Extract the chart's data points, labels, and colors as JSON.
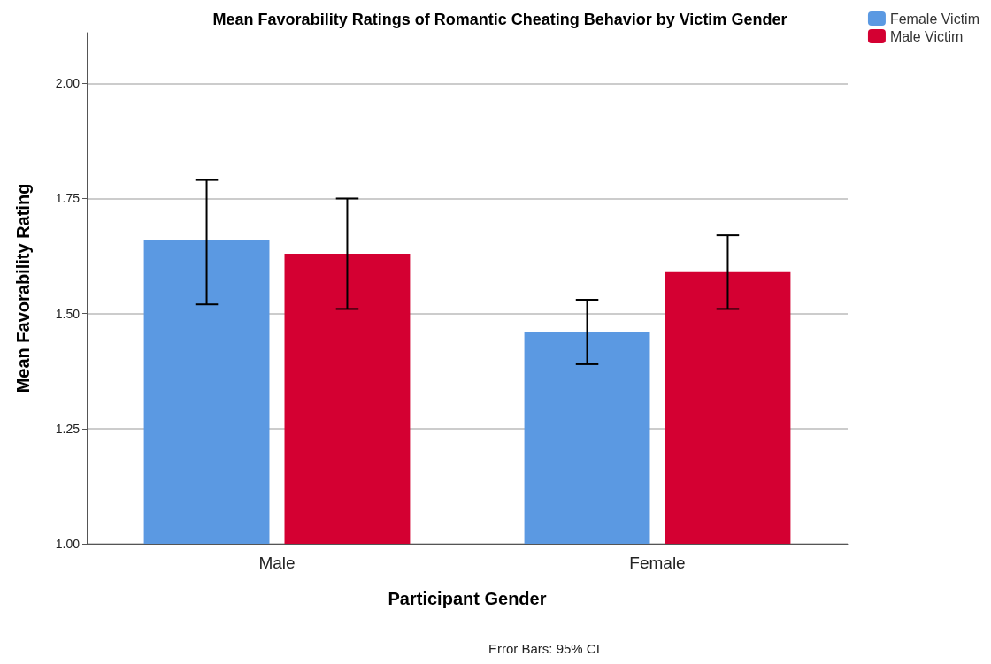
{
  "chart_data": {
    "type": "bar",
    "title": "Mean Favorability Ratings of Romantic Cheating Behavior by Victim Gender",
    "xlabel": "Participant Gender",
    "ylabel": "Mean Favorability Rating",
    "categories": [
      "Male",
      "Female"
    ],
    "series": [
      {
        "name": "Female Victim",
        "color": "#5b99e2",
        "values": [
          1.66,
          1.46
        ],
        "errors": [
          [
            1.52,
            1.79
          ],
          [
            1.39,
            1.53
          ]
        ]
      },
      {
        "name": "Male Victim",
        "color": "#d40032",
        "values": [
          1.63,
          1.59
        ],
        "errors": [
          [
            1.51,
            1.75
          ],
          [
            1.51,
            1.67
          ]
        ]
      }
    ],
    "ylim": [
      1,
      2.11
    ],
    "yticks": [
      {
        "value": 1,
        "label": "1.00"
      },
      {
        "value": 1.25,
        "label": "1.25"
      },
      {
        "value": 1.5,
        "label": "1.50"
      },
      {
        "value": 1.75,
        "label": "1.75"
      },
      {
        "value": 2,
        "label": "2.00"
      }
    ],
    "grid": "y",
    "legend": "top right",
    "annotations": [
      "Error Bars: 95% CI"
    ]
  }
}
